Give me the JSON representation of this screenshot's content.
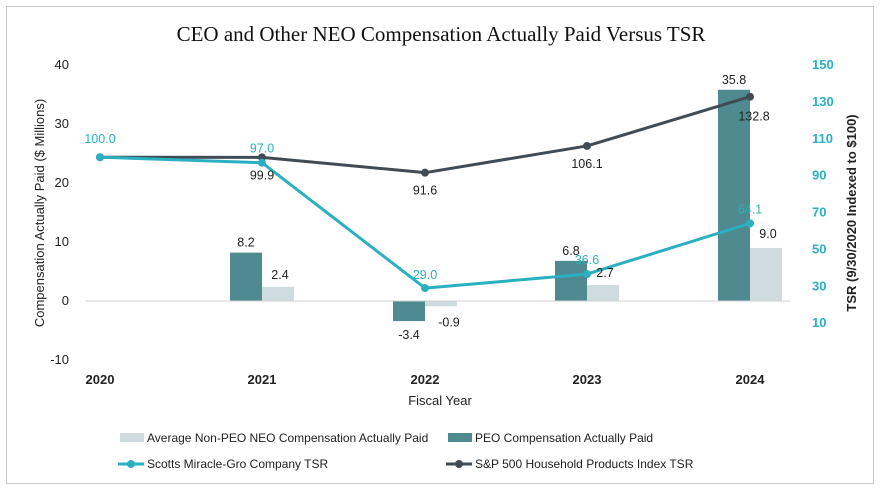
{
  "chart_data": {
    "type": "bar",
    "title": "CEO and Other NEO Compensation Actually Paid Versus TSR",
    "xlabel": "Fiscal Year",
    "ylabel": "Compensation Actually Paid ($ Millions)",
    "y2label": "TSR (9/30/2020 Indexed to $100)",
    "categories": [
      "2020",
      "2021",
      "2022",
      "2023",
      "2024"
    ],
    "ylim": [
      -10,
      40
    ],
    "y2lim": [
      -10,
      150
    ],
    "yticks": [
      -10,
      0,
      10,
      20,
      30,
      40
    ],
    "y2ticks": [
      10,
      30,
      50,
      70,
      90,
      110,
      130,
      150
    ],
    "series": [
      {
        "name": "PEO Compensation Actually Paid",
        "kind": "bar",
        "axis": "left",
        "color": "#4e8a8f",
        "values": [
          null,
          8.2,
          -3.4,
          6.8,
          35.8
        ],
        "labels": [
          "",
          "8.2",
          "-3.4",
          "6.8",
          "35.8"
        ]
      },
      {
        "name": "Average Non-PEO NEO Compensation Actually Paid",
        "kind": "bar",
        "axis": "left",
        "color": "#cfdcdf",
        "values": [
          null,
          2.4,
          -0.9,
          2.7,
          9.0
        ],
        "labels": [
          "",
          "2.4",
          "-0.9",
          "2.7",
          "9.0"
        ]
      },
      {
        "name": "Scotts Miracle-Gro Company TSR",
        "kind": "line",
        "axis": "right",
        "color": "#2ab0c0",
        "values": [
          100.0,
          97.0,
          29.0,
          36.6,
          64.1
        ],
        "labels": [
          "100.0",
          "97.0",
          "29.0",
          "36.6",
          "64.1"
        ]
      },
      {
        "name": "S&P 500 Household Products Index TSR",
        "kind": "line",
        "axis": "right",
        "color": "#414b55",
        "values": [
          100.0,
          99.9,
          91.6,
          106.1,
          132.8
        ],
        "labels": [
          "",
          "99.9",
          "91.6",
          "106.1",
          "132.8"
        ]
      }
    ],
    "legend": {
      "position": "bottom",
      "entries": [
        "Average Non-PEO NEO Compensation Actually Paid",
        "PEO Compensation Actually Paid",
        "Scotts Miracle-Gro Company TSR",
        "S&P 500 Household Products Index TSR"
      ]
    }
  }
}
